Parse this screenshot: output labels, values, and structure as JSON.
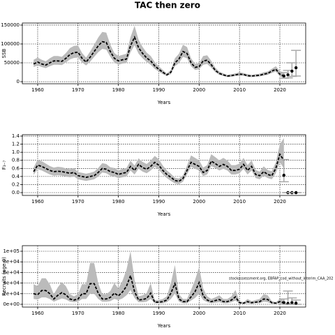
{
  "chart_data": [
    {
      "type": "line",
      "title": "TAC then zero",
      "ylabel": "SSB",
      "xlabel": "Years",
      "color": "#000000",
      "band_color": "#bbbbbb",
      "grid": true,
      "xlim": [
        1956.2,
        2026.4
      ],
      "xticks": [
        1960,
        1970,
        1980,
        1990,
        2000,
        2010,
        2020
      ],
      "ylim": [
        -5500,
        155500
      ],
      "yticks": [
        0,
        50000,
        100000,
        150000
      ],
      "x": [
        1959,
        1960,
        1961,
        1962,
        1963,
        1964,
        1965,
        1966,
        1967,
        1968,
        1969,
        1970,
        1971,
        1972,
        1973,
        1974,
        1975,
        1976,
        1977,
        1978,
        1979,
        1980,
        1981,
        1982,
        1983,
        1984,
        1985,
        1986,
        1987,
        1988,
        1989,
        1990,
        1991,
        1992,
        1993,
        1994,
        1995,
        1996,
        1997,
        1998,
        1999,
        2000,
        2001,
        2002,
        2003,
        2004,
        2005,
        2006,
        2007,
        2008,
        2009,
        2010,
        2011,
        2012,
        2013,
        2014,
        2015,
        2016,
        2017,
        2018,
        2019,
        2020,
        2021
      ],
      "values": [
        47000,
        52000,
        47000,
        44000,
        50000,
        55000,
        55000,
        54000,
        62000,
        72000,
        77000,
        78000,
        62000,
        52000,
        65000,
        80000,
        95000,
        106000,
        104000,
        80000,
        62000,
        55000,
        58000,
        60000,
        95000,
        118000,
        90000,
        75000,
        63000,
        55000,
        42000,
        33000,
        25000,
        18000,
        25000,
        50000,
        60000,
        80000,
        75000,
        50000,
        38000,
        40000,
        55000,
        57000,
        45000,
        30000,
        22000,
        18000,
        15000,
        16000,
        18000,
        20000,
        19000,
        16000,
        15000,
        16000,
        17000,
        20000,
        22000,
        28000,
        33000,
        20000,
        15000
      ],
      "lower": [
        39000,
        43000,
        39000,
        36000,
        41000,
        45000,
        45000,
        44000,
        51000,
        59000,
        63000,
        64000,
        51000,
        43000,
        53000,
        66000,
        78000,
        87000,
        85000,
        66000,
        51000,
        45000,
        48000,
        49000,
        78000,
        97000,
        74000,
        62000,
        52000,
        45000,
        34000,
        27000,
        20000,
        15000,
        20000,
        41000,
        49000,
        66000,
        62000,
        41000,
        31000,
        33000,
        45000,
        47000,
        37000,
        25000,
        18000,
        15000,
        12000,
        13000,
        15000,
        16000,
        16000,
        13000,
        12000,
        13000,
        14000,
        16000,
        18000,
        23000,
        27000,
        14000,
        9000
      ],
      "upper": [
        58000,
        64000,
        58000,
        54000,
        62000,
        68000,
        68000,
        66000,
        76000,
        89000,
        95000,
        96000,
        76000,
        64000,
        80000,
        98000,
        117000,
        132000,
        130000,
        98000,
        76000,
        68000,
        71000,
        74000,
        118000,
        148000,
        111000,
        92000,
        77000,
        68000,
        52000,
        41000,
        31000,
        22000,
        31000,
        62000,
        74000,
        98000,
        92000,
        62000,
        47000,
        49000,
        68000,
        70000,
        55000,
        37000,
        27000,
        22000,
        18000,
        20000,
        22000,
        25000,
        23000,
        20000,
        18000,
        20000,
        21000,
        25000,
        27000,
        34000,
        41000,
        28000,
        24000
      ],
      "proj_x": [
        2021,
        2022,
        2023,
        2024
      ],
      "proj_values": [
        15000,
        18000,
        28000,
        37000
      ],
      "proj_lower": [
        9000,
        10000,
        14000,
        15000
      ],
      "proj_upper": [
        24000,
        30000,
        50000,
        83000
      ]
    },
    {
      "type": "line",
      "ylabel": "F₃₋₇",
      "xlabel": "Years",
      "color": "#000000",
      "band_color": "#bbbbbb",
      "grid": true,
      "xlim": [
        1956.2,
        2026.4
      ],
      "xticks": [
        1960,
        1970,
        1980,
        1990,
        2000,
        2010,
        2020
      ],
      "ylim": [
        -0.069,
        1.435
      ],
      "yticks": [
        {
          "value": 0,
          "label": "0.0"
        },
        0.2,
        0.4,
        0.6,
        0.8,
        {
          "value": 1,
          "label": "1.0"
        },
        1.2,
        1.4
      ],
      "x": [
        1959,
        1960,
        1961,
        1962,
        1963,
        1964,
        1965,
        1966,
        1967,
        1968,
        1969,
        1970,
        1971,
        1972,
        1973,
        1974,
        1975,
        1976,
        1977,
        1978,
        1979,
        1980,
        1981,
        1982,
        1983,
        1984,
        1985,
        1986,
        1987,
        1988,
        1989,
        1990,
        1991,
        1992,
        1993,
        1994,
        1995,
        1996,
        1997,
        1998,
        1999,
        2000,
        2001,
        2002,
        2003,
        2004,
        2005,
        2006,
        2007,
        2008,
        2009,
        2010,
        2011,
        2012,
        2013,
        2014,
        2015,
        2016,
        2017,
        2018,
        2019,
        2020,
        2021
      ],
      "values": [
        0.52,
        0.68,
        0.65,
        0.6,
        0.55,
        0.52,
        0.53,
        0.52,
        0.5,
        0.48,
        0.5,
        0.42,
        0.4,
        0.38,
        0.4,
        0.42,
        0.5,
        0.6,
        0.58,
        0.52,
        0.5,
        0.45,
        0.48,
        0.5,
        0.65,
        0.55,
        0.7,
        0.62,
        0.58,
        0.65,
        0.75,
        0.68,
        0.55,
        0.45,
        0.38,
        0.3,
        0.28,
        0.35,
        0.55,
        0.75,
        0.7,
        0.65,
        0.5,
        0.55,
        0.78,
        0.72,
        0.65,
        0.7,
        0.65,
        0.55,
        0.55,
        0.58,
        0.7,
        0.55,
        0.65,
        0.45,
        0.42,
        0.52,
        0.45,
        0.42,
        0.6,
        0.95,
        0.8
      ],
      "lower": [
        0.44,
        0.58,
        0.55,
        0.5,
        0.45,
        0.42,
        0.43,
        0.42,
        0.4,
        0.38,
        0.4,
        0.33,
        0.31,
        0.29,
        0.31,
        0.33,
        0.4,
        0.5,
        0.48,
        0.42,
        0.4,
        0.36,
        0.38,
        0.4,
        0.55,
        0.45,
        0.59,
        0.52,
        0.48,
        0.55,
        0.64,
        0.57,
        0.45,
        0.36,
        0.29,
        0.23,
        0.21,
        0.27,
        0.45,
        0.64,
        0.59,
        0.55,
        0.41,
        0.45,
        0.66,
        0.61,
        0.55,
        0.59,
        0.55,
        0.45,
        0.45,
        0.48,
        0.59,
        0.45,
        0.55,
        0.36,
        0.33,
        0.42,
        0.36,
        0.33,
        0.48,
        0.75,
        0.6
      ],
      "upper": [
        0.62,
        0.82,
        0.78,
        0.72,
        0.66,
        0.62,
        0.64,
        0.63,
        0.6,
        0.58,
        0.61,
        0.51,
        0.49,
        0.47,
        0.49,
        0.52,
        0.61,
        0.73,
        0.71,
        0.63,
        0.61,
        0.55,
        0.59,
        0.61,
        0.79,
        0.67,
        0.85,
        0.76,
        0.71,
        0.79,
        0.91,
        0.83,
        0.67,
        0.55,
        0.47,
        0.37,
        0.35,
        0.43,
        0.67,
        0.92,
        0.86,
        0.8,
        0.62,
        0.68,
        0.95,
        0.88,
        0.8,
        0.86,
        0.8,
        0.68,
        0.68,
        0.72,
        0.86,
        0.68,
        0.8,
        0.56,
        0.52,
        0.65,
        0.56,
        0.53,
        0.75,
        1.2,
        1.35
      ],
      "proj_x": [
        2021,
        2022,
        2023,
        2024
      ],
      "proj_values": [
        0.43,
        0,
        0,
        0
      ],
      "proj_lower": [
        0.27,
        0,
        0,
        0
      ],
      "proj_upper": [
        0.82,
        0,
        0,
        0
      ]
    },
    {
      "type": "line",
      "ylabel": "Recruits (age 0)",
      "xlabel": "Years",
      "annotation": "stockassessment.org, EBFAP_cod_without_interim_CAA_202",
      "color": "#000000",
      "band_color": "#bbbbbb",
      "grid": true,
      "xlim": [
        1956.2,
        2026.4
      ],
      "xticks": [
        1960,
        1970,
        1980,
        1990,
        2000,
        2010,
        2020
      ],
      "ylim": [
        -5263,
        110526
      ],
      "yticks": [
        {
          "value": 0,
          "label": "0e+00"
        },
        {
          "value": 20000,
          "label": "2e+04"
        },
        {
          "value": 40000,
          "label": "4e+04"
        },
        {
          "value": 60000,
          "label": "6e+04"
        },
        {
          "value": 80000,
          "label": "8e+04"
        },
        {
          "value": 100000,
          "label": "1e+05"
        }
      ],
      "x": [
        1959,
        1960,
        1961,
        1962,
        1963,
        1964,
        1965,
        1966,
        1967,
        1968,
        1969,
        1970,
        1971,
        1972,
        1973,
        1974,
        1975,
        1976,
        1977,
        1978,
        1979,
        1980,
        1981,
        1982,
        1983,
        1984,
        1985,
        1986,
        1987,
        1988,
        1989,
        1990,
        1991,
        1992,
        1993,
        1994,
        1995,
        1996,
        1997,
        1998,
        1999,
        2000,
        2001,
        2002,
        2003,
        2004,
        2005,
        2006,
        2007,
        2008,
        2009,
        2010,
        2011,
        2012,
        2013,
        2014,
        2015,
        2016,
        2017,
        2018,
        2019,
        2020,
        2021
      ],
      "values": [
        20000,
        18000,
        26000,
        26000,
        20000,
        10000,
        17000,
        22000,
        18000,
        10000,
        8000,
        10000,
        20000,
        20000,
        39000,
        39000,
        21000,
        10000,
        10000,
        13000,
        21000,
        16000,
        23000,
        34000,
        54000,
        24000,
        8000,
        9000,
        11000,
        21000,
        4000,
        4000,
        5000,
        8000,
        21000,
        39000,
        10000,
        5000,
        5000,
        14000,
        24000,
        41000,
        16000,
        8000,
        5000,
        7000,
        9000,
        5000,
        5000,
        8000,
        14000,
        3000,
        2000,
        5000,
        3000,
        4000,
        5000,
        10000,
        9000,
        3000,
        2000,
        5000,
        3000
      ],
      "lower": [
        10000,
        9000,
        13000,
        13000,
        10000,
        5000,
        8000,
        11000,
        9000,
        5000,
        4000,
        5000,
        10000,
        10000,
        20000,
        20000,
        10000,
        5000,
        5000,
        6000,
        10000,
        8000,
        11000,
        17000,
        27000,
        12000,
        4000,
        4000,
        5000,
        10000,
        2000,
        2000,
        2000,
        4000,
        10000,
        20000,
        5000,
        2000,
        2000,
        7000,
        12000,
        20000,
        8000,
        4000,
        2000,
        3000,
        4000,
        2000,
        2000,
        4000,
        7000,
        1000,
        1000,
        2000,
        1000,
        2000,
        2000,
        5000,
        4000,
        1000,
        1000,
        2000,
        1000
      ],
      "upper": [
        38000,
        34000,
        49000,
        49000,
        38000,
        19000,
        32000,
        42000,
        34000,
        19000,
        15000,
        19000,
        38000,
        38000,
        78000,
        78000,
        40000,
        19000,
        19000,
        25000,
        40000,
        30000,
        44000,
        65000,
        100000,
        46000,
        15000,
        17000,
        21000,
        40000,
        8000,
        8000,
        10000,
        15000,
        40000,
        74000,
        19000,
        10000,
        10000,
        27000,
        46000,
        70000,
        30000,
        15000,
        10000,
        13000,
        17000,
        10000,
        10000,
        15000,
        27000,
        6000,
        4000,
        10000,
        6000,
        8000,
        10000,
        19000,
        17000,
        6000,
        4000,
        10000,
        8000
      ],
      "proj_x": [
        2021,
        2022,
        2023,
        2024
      ],
      "proj_values": [
        3000,
        1500,
        3000,
        2000
      ],
      "proj_lower": [
        500,
        0,
        0,
        0
      ],
      "proj_upper": [
        10000,
        25000,
        12000,
        8000
      ]
    }
  ]
}
